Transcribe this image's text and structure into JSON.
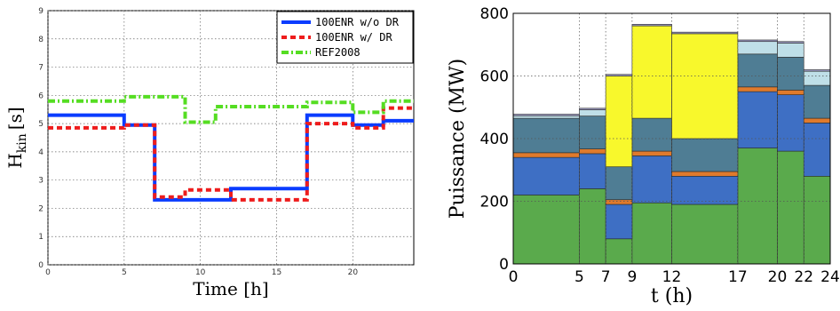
{
  "chart_data": [
    {
      "type": "line",
      "step": true,
      "xlabel": "Time [h]",
      "ylabel_main": "H",
      "ylabel_sub": "kin",
      "ylabel_unit": "[s]",
      "xlim": [
        0,
        24
      ],
      "ylim": [
        0,
        9
      ],
      "xticks": [
        "0",
        "5",
        "10",
        "15",
        "20"
      ],
      "yticks": [
        "0",
        "1",
        "2",
        "3",
        "4",
        "5",
        "6",
        "7",
        "8",
        "9"
      ],
      "grid": true,
      "legend_position": "top-right",
      "series": [
        {
          "name": "100ENR w/o DR",
          "color": "#0a3cff",
          "dash": "solid",
          "points": [
            [
              0,
              5.3
            ],
            [
              5,
              5.3
            ],
            [
              5,
              4.95
            ],
            [
              7,
              4.95
            ],
            [
              7,
              2.3
            ],
            [
              12,
              2.3
            ],
            [
              12,
              2.7
            ],
            [
              17,
              2.7
            ],
            [
              17,
              5.3
            ],
            [
              20,
              5.3
            ],
            [
              20,
              4.95
            ],
            [
              22,
              4.95
            ],
            [
              22,
              5.1
            ],
            [
              24,
              5.1
            ]
          ]
        },
        {
          "name": "100ENR w/ DR",
          "color": "#ee1c1c",
          "dash": "dashed",
          "points": [
            [
              0,
              4.85
            ],
            [
              5,
              4.85
            ],
            [
              5,
              4.95
            ],
            [
              7,
              4.95
            ],
            [
              7,
              2.4
            ],
            [
              9,
              2.4
            ],
            [
              9,
              2.65
            ],
            [
              12,
              2.65
            ],
            [
              12,
              2.3
            ],
            [
              17,
              2.3
            ],
            [
              17,
              5.0
            ],
            [
              20,
              5.0
            ],
            [
              20,
              4.85
            ],
            [
              22,
              4.85
            ],
            [
              22,
              5.55
            ],
            [
              24,
              5.55
            ]
          ]
        },
        {
          "name": "REF2008",
          "color": "#55dd22",
          "dash": "dashdot",
          "points": [
            [
              0,
              5.8
            ],
            [
              5,
              5.8
            ],
            [
              5,
              5.95
            ],
            [
              9,
              5.95
            ],
            [
              9,
              5.05
            ],
            [
              11,
              5.05
            ],
            [
              11,
              5.6
            ],
            [
              17,
              5.6
            ],
            [
              17,
              5.75
            ],
            [
              20,
              5.75
            ],
            [
              20,
              5.4
            ],
            [
              22,
              5.4
            ],
            [
              22,
              5.8
            ],
            [
              24,
              5.8
            ]
          ]
        }
      ]
    },
    {
      "type": "area",
      "stacked": true,
      "step": true,
      "xlabel": "t (h)",
      "ylabel": "Puissance (MW)",
      "ylim": [
        0,
        800
      ],
      "xlim": [
        0,
        24
      ],
      "xticks": [
        "0",
        "5",
        "7",
        "9",
        "12",
        "17",
        "20",
        "22",
        "24"
      ],
      "yticks": [
        "0",
        "200",
        "400",
        "600",
        "800"
      ],
      "grid": true,
      "interval_edges": [
        0,
        5,
        7,
        9,
        12,
        17,
        20,
        22,
        24
      ],
      "layers": [
        {
          "color": "#5aaa4c",
          "values": [
            220,
            240,
            80,
            195,
            190,
            370,
            360,
            280
          ]
        },
        {
          "color": "#3e6fc4",
          "values": [
            120,
            112,
            110,
            150,
            90,
            180,
            180,
            170
          ]
        },
        {
          "color": "#df7a2c",
          "values": [
            15,
            15,
            15,
            15,
            15,
            15,
            15,
            15
          ]
        },
        {
          "color": "#4f7d94",
          "values": [
            110,
            105,
            105,
            105,
            105,
            105,
            105,
            105
          ]
        },
        {
          "color": "#f8f82c",
          "values": [
            0,
            0,
            290,
            295,
            335,
            0,
            0,
            0
          ]
        },
        {
          "color": "#bfdfe8",
          "values": [
            8,
            20,
            0,
            0,
            0,
            40,
            45,
            45
          ]
        },
        {
          "color": "#9b99c2",
          "values": [
            5,
            5,
            5,
            5,
            5,
            5,
            5,
            5
          ]
        }
      ]
    }
  ]
}
